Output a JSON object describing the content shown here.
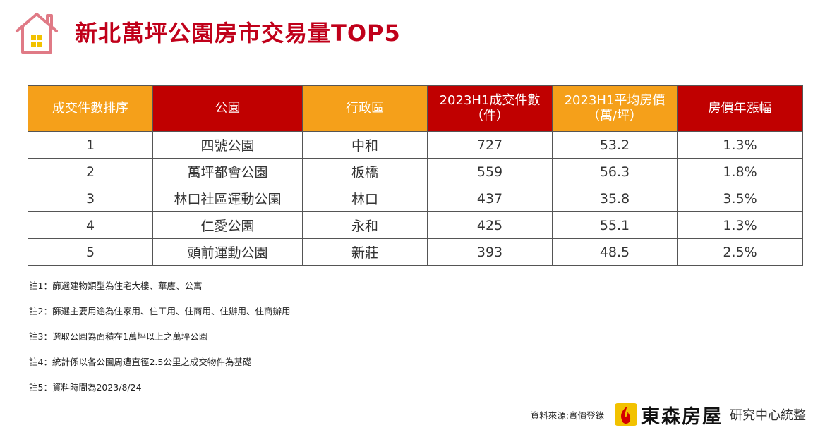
{
  "title": "新北萬坪公園房市交易量TOP5",
  "colors": {
    "title": "#c0001a",
    "header_orange": "#f5a01a",
    "header_red": "#c00000",
    "house_icon": "#e07a86",
    "house_window": "#f2c200"
  },
  "table": {
    "headers": [
      {
        "line1": "成交件數排序",
        "line2": ""
      },
      {
        "line1": "公園",
        "line2": ""
      },
      {
        "line1": "行政區",
        "line2": ""
      },
      {
        "line1": "2023H1成交件數",
        "line2": "（件）"
      },
      {
        "line1": "2023H1平均房價",
        "line2": "（萬/坪）"
      },
      {
        "line1": "房價年漲幅",
        "line2": ""
      }
    ],
    "rows": [
      [
        "1",
        "四號公園",
        "中和",
        "727",
        "53.2",
        "1.3%"
      ],
      [
        "2",
        "萬坪都會公園",
        "板橋",
        "559",
        "56.3",
        "1.8%"
      ],
      [
        "3",
        "林口社區運動公園",
        "林口",
        "437",
        "35.8",
        "3.5%"
      ],
      [
        "4",
        "仁愛公園",
        "永和",
        "425",
        "55.1",
        "1.3%"
      ],
      [
        "5",
        "頭前運動公園",
        "新莊",
        "393",
        "48.5",
        "2.5%"
      ]
    ]
  },
  "notes": [
    "註1：篩選建物類型為住宅大樓、華廈、公寓",
    "註2：篩選主要用途為住家用、住工用、住商用、住辦用、住商辦用",
    "註3：選取公園為面積在1萬坪以上之萬坪公園",
    "註4：統計係以各公園周遭直徑2.5公里之成交物件為基礎",
    "註5：資料時間為2023/8/24"
  ],
  "footer": {
    "source": "資料來源:實價登錄",
    "brand": "東森房屋",
    "brand_suffix": "研究中心統整"
  },
  "icons": {
    "logo": "house-logo-icon",
    "brand": "brand-flame-icon"
  }
}
